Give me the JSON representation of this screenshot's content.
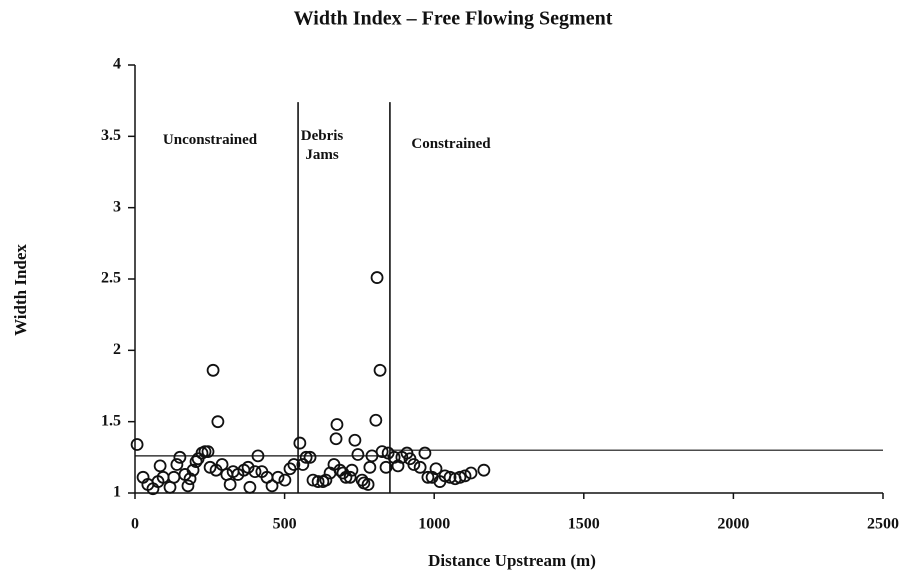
{
  "chart_data": {
    "type": "scatter",
    "title": "Width Index – Free Flowing Segment",
    "x_label": "Distance Upstream (m)",
    "y_label": "Width Index",
    "xlim": [
      0,
      2500
    ],
    "ylim": [
      1,
      4
    ],
    "xticks": [
      0,
      500,
      1000,
      1500,
      2000,
      2500
    ],
    "yticks": [
      1,
      1.5,
      2,
      2.5,
      3,
      3.5,
      4
    ],
    "color": "#111111",
    "marker": "open-circle",
    "annotations": [
      [
        "Unconstrained"
      ],
      [
        "Debris",
        "Jams"
      ],
      [
        "Constrained"
      ]
    ],
    "reference_lines": {
      "vertical": [
        545,
        852
      ],
      "vertical_top": 3.74,
      "horizontal": [
        {
          "x": [
            0,
            852
          ],
          "y": 1.26
        },
        {
          "x": [
            852,
            2500
          ],
          "y": 1.3
        }
      ]
    },
    "x": [
      7,
      27,
      43,
      60,
      77,
      84,
      94,
      117,
      130,
      140,
      150,
      167,
      177,
      184,
      194,
      204,
      211,
      224,
      234,
      244,
      251,
      261,
      271,
      277,
      291,
      307,
      318,
      328,
      344,
      364,
      378,
      384,
      401,
      411,
      424,
      441,
      458,
      478,
      501,
      518,
      531,
      551,
      561,
      572,
      585,
      595,
      612,
      628,
      638,
      652,
      665,
      672,
      675,
      685,
      695,
      705,
      719,
      725,
      735,
      745,
      759,
      765,
      779,
      785,
      792,
      805,
      809,
      819,
      826,
      839,
      846,
      866,
      879,
      892,
      909,
      919,
      932,
      953,
      969,
      979,
      993,
      1006,
      1019,
      1036,
      1053,
      1070,
      1086,
      1103,
      1123,
      1166
    ],
    "values": [
      1.34,
      1.11,
      1.06,
      1.03,
      1.08,
      1.19,
      1.11,
      1.04,
      1.11,
      1.2,
      1.25,
      1.13,
      1.05,
      1.1,
      1.16,
      1.22,
      1.24,
      1.28,
      1.29,
      1.29,
      1.18,
      1.86,
      1.16,
      1.5,
      1.2,
      1.13,
      1.06,
      1.15,
      1.13,
      1.16,
      1.18,
      1.04,
      1.15,
      1.26,
      1.15,
      1.11,
      1.05,
      1.11,
      1.09,
      1.17,
      1.2,
      1.35,
      1.2,
      1.25,
      1.25,
      1.09,
      1.08,
      1.08,
      1.09,
      1.14,
      1.2,
      1.38,
      1.48,
      1.16,
      1.14,
      1.11,
      1.11,
      1.16,
      1.37,
      1.27,
      1.09,
      1.07,
      1.06,
      1.18,
      1.26,
      1.51,
      2.51,
      1.86,
      1.29,
      1.18,
      1.28,
      1.25,
      1.19,
      1.25,
      1.28,
      1.24,
      1.2,
      1.18,
      1.28,
      1.11,
      1.11,
      1.17,
      1.08,
      1.12,
      1.11,
      1.1,
      1.11,
      1.12,
      1.14,
      1.16
    ]
  }
}
